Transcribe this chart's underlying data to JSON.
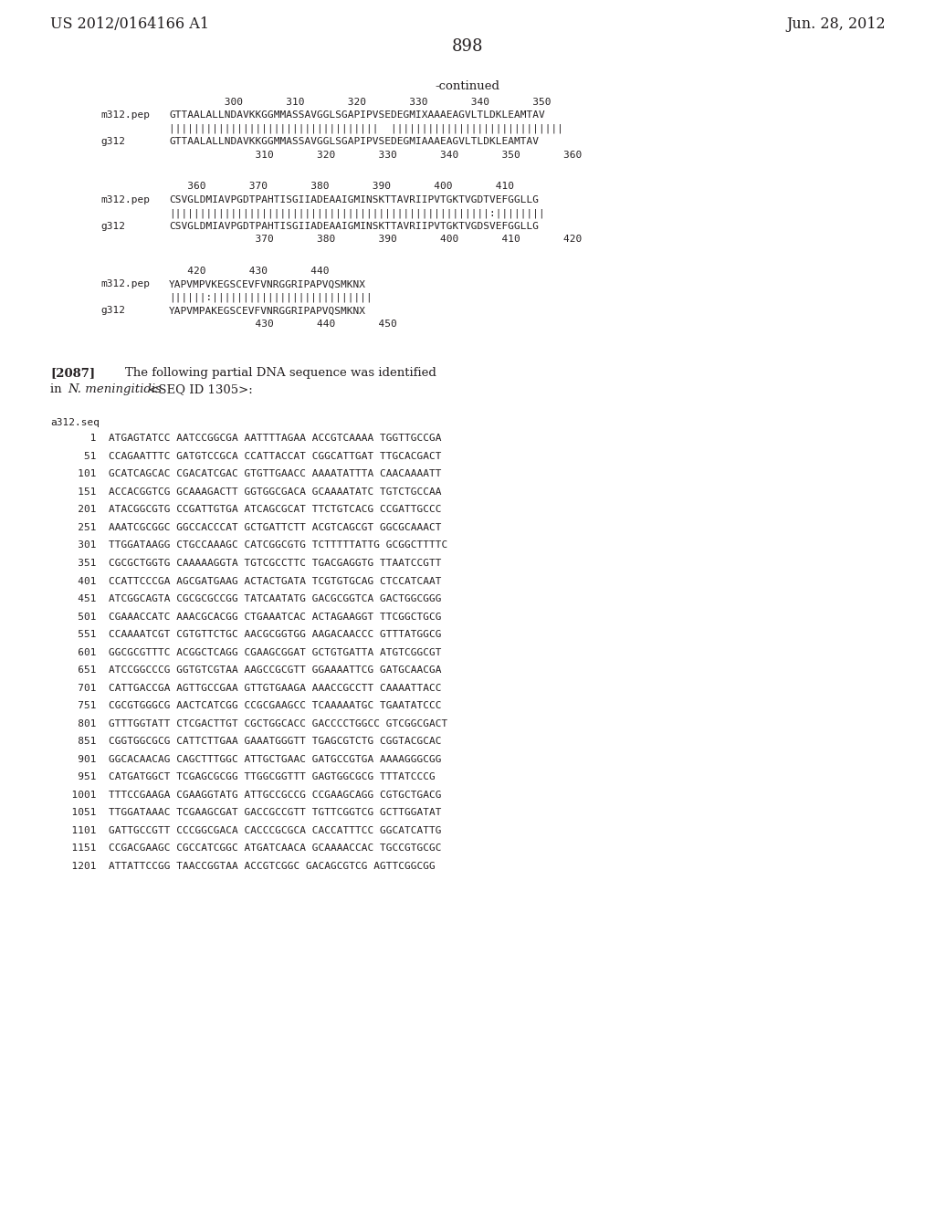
{
  "header_left": "US 2012/0164166 A1",
  "header_right": "Jun. 28, 2012",
  "page_number": "898",
  "continued_label": "-continued",
  "background_color": "#ffffff",
  "text_color": "#231f20",
  "alignment_blocks": [
    {
      "num_line_top": "         300       310       320       330       340       350",
      "seq1_label": "m312.pep",
      "seq1": "GTTAALALLNDAVKKGGMMASSAVGGLSGAPIPVSEDEGMIXAAAEAGVLTLDKLEAMTAV",
      "match": "||||||||||||||||||||||||||||||||||  ||||||||||||||||||||||||||||",
      "seq2_label": "g312",
      "seq2": "GTTAALALLNDAVKKGGMMASSAVGGLSGAPIPVSEDEGMIAAAEAGVLTLDKLEAMTAV",
      "num_line_bot": "              310       320       330       340       350       360"
    },
    {
      "num_line_top": "   360       370       380       390       400       410",
      "seq1_label": "m312.pep",
      "seq1": "CSVGLDMIAVPGDTPAHTISGIIADEAAIGMINSKTTAVRIIPVTGKTVGDTVEFGGLLG",
      "match": "||||||||||||||||||||||||||||||||||||||||||||||||||||:||||||||",
      "seq2_label": "g312",
      "seq2": "CSVGLDMIAVPGDTPAHTISGIIADEAAIGMINSKTTAVRIIPVTGKTVGDSVEFGGLLG",
      "num_line_bot": "              370       380       390       400       410       420"
    },
    {
      "num_line_top": "   420       430       440",
      "seq1_label": "m312.pep",
      "seq1": "YAPVMPVKEGSCEVFVNRGGRIPAPVQSMKNX",
      "match": "||||||:||||||||||||||||||||||||||",
      "seq2_label": "g312",
      "seq2": "YAPVMPAKEGSCEVFVNRGGRIPAPVQSMKNX",
      "num_line_bot": "              430       440       450"
    }
  ],
  "para_label": "[2087]",
  "para_line1_normal": "    The following partial DNA sequence was identified",
  "para_line2_prefix": "in ",
  "para_line2_italic": "N. meningitidis",
  "para_line2_suffix": " <SEQ ID 1305>:",
  "seq_name": "a312.seq",
  "dna_lines": [
    "     1  ATGAGTATCC AATCCGGCGA AATTTTAGAA ACCGTCAAAA TGGTTGCCGA",
    "    51  CCAGAATTTC GATGTCCGCA CCATTACCAT CGGCATTGAT TTGCACGACT",
    "   101  GCATCAGCAC CGACATCGAC GTGTTGAACC AAAATATTTA CAACAAAATT",
    "   151  ACCACGGTCG GCAAAGACTT GGTGGCGACA GCAAAATATC TGTCTGCCAA",
    "   201  ATACGGCGTG CCGATTGTGA ATCAGCGCAT TTCTGTCACG CCGATTGCCC",
    "   251  AAATCGCGGC GGCCACCCAT GCTGATTCTT ACGTCAGCGT GGCGCAAACT",
    "   301  TTGGATAAGG CTGCCAAAGC CATCGGCGTG TCTTTTTATTG GCGGCTTTTC",
    "   351  CGCGCTGGTG CAAAAAGGTA TGTCGCCTTC TGACGAGGTG TTAATCCGTT",
    "   401  CCATTCCCGA AGCGATGAAG ACTACTGATA TCGTGTGCAG CTCCATCAAT",
    "   451  ATCGGCAGTA CGCGCGCCGG TATCAATATG GACGCGGTCA GACTGGCGGG",
    "   501  CGAAACCATC AAACGCACGG CTGAAATCAC ACTAGAAGGT TTCGGCTGCG",
    "   551  CCAAAATCGT CGTGTTCTGC AACGCGGTGG AAGACAACCC GTTTATGGCG",
    "   601  GGCGCGTTTC ACGGCTCAGG CGAAGCGGAT GCTGTGATTA ATGTCGGCGT",
    "   651  ATCCGGCCCG GGTGTCGTAA AAGCCGCGTT GGAAAATTCG GATGCAACGA",
    "   701  CATTGACCGA AGTTGCCGAA GTTGTGAAGA AAACCGCCTT CAAAATTACC",
    "   751  CGCGTGGGCG AACTCATCGG CCGCGAAGCC TCAAAAATGC TGAATATCCC",
    "   801  GTTTGGTATT CTCGACTTGT CGCTGGCACC GACCCCTGGCC GTCGGCGACT",
    "   851  CGGTGGCGCG CATTCTTGAA GAAATGGGTT TGAGCGTCTG CGGTACGCAC",
    "   901  GGCACAACAG CAGCTTTGGC ATTGCTGAAC GATGCCGTGA AAAAGGGCGG",
    "   951  CATGATGGCT TCGAGCGCGG TTGGCGGTTT GAGTGGCGCG TTTATCCCG",
    "  1001  TTTCCGAAGA CGAAGGTATG ATTGCCGCCG CCGAAGCAGG CGTGCTGACG",
    "  1051  TTGGATAAAC TCGAAGCGAT GACCGCCGTT TGTTCGGTCG GCTTGGATAT",
    "  1101  GATTGCCGTT CCCGGCGACA CACCCGCGCA CACCATTTCC GGCATCATTG",
    "  1151  CCGACGAAGC CGCCATCGGC ATGATCAACA GCAAAACCAC TGCCGTGCGC",
    "  1201  ATTATTCCGG TAACCGGTAA ACCGTCGGC GACAGCGTCG AGTTCGGCGG"
  ],
  "fs_header": 11.5,
  "fs_page_num": 13,
  "fs_continued": 9.5,
  "fs_body": 9.5,
  "fs_mono": 8.0,
  "fs_seq_label": 8.0
}
